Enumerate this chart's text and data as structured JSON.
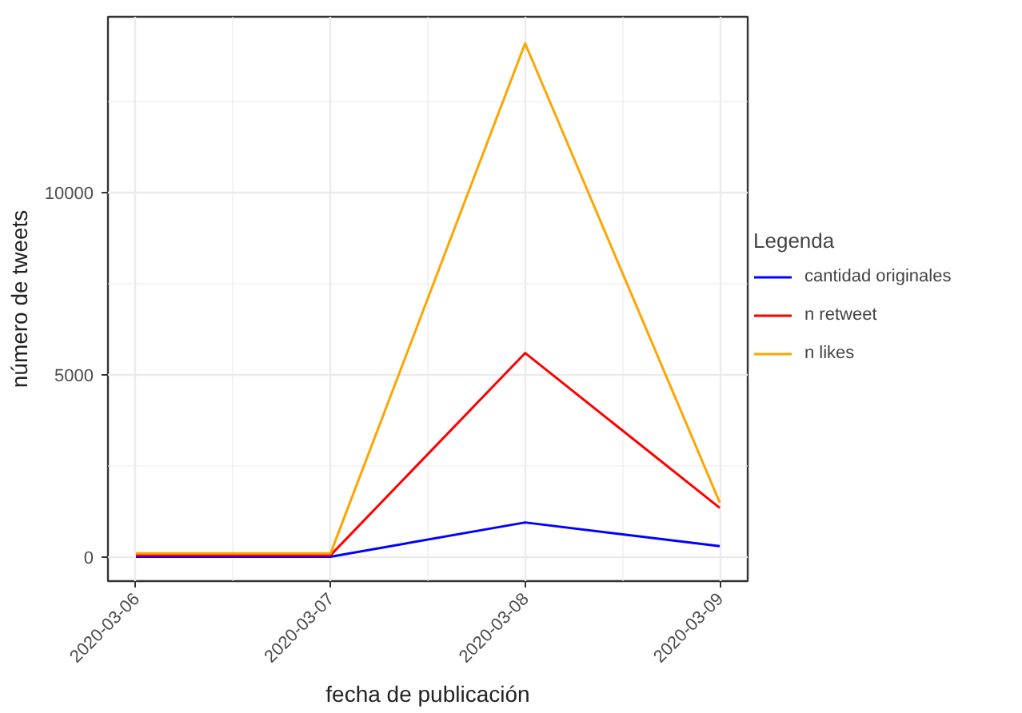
{
  "chart_data": {
    "type": "line",
    "xlabel": "fecha de publicación",
    "ylabel": "número de tweets",
    "legend_title": "Legenda",
    "x": [
      "2020-03-06",
      "2020-03-07",
      "2020-03-08",
      "2020-03-09"
    ],
    "series": [
      {
        "name": "cantidad originales",
        "color": "#0000ff",
        "values": [
          10,
          10,
          950,
          300
        ]
      },
      {
        "name": "n retweet",
        "color": "#ff0000",
        "values": [
          50,
          50,
          5600,
          1350
        ]
      },
      {
        "name": "n likes",
        "color": "#ffa500",
        "values": [
          100,
          100,
          14100,
          1500
        ]
      }
    ],
    "xlim": [
      "2020-03-05T20:33",
      "2020-03-09T03:27"
    ],
    "xticks": [
      "2020-03-06",
      "2020-03-07",
      "2020-03-08",
      "2020-03-09"
    ],
    "ylim": [
      -660,
      14830
    ],
    "yticks": [
      0,
      5000,
      10000
    ],
    "grid": true,
    "legend": "right",
    "line_style": "solid",
    "marker": "none"
  }
}
